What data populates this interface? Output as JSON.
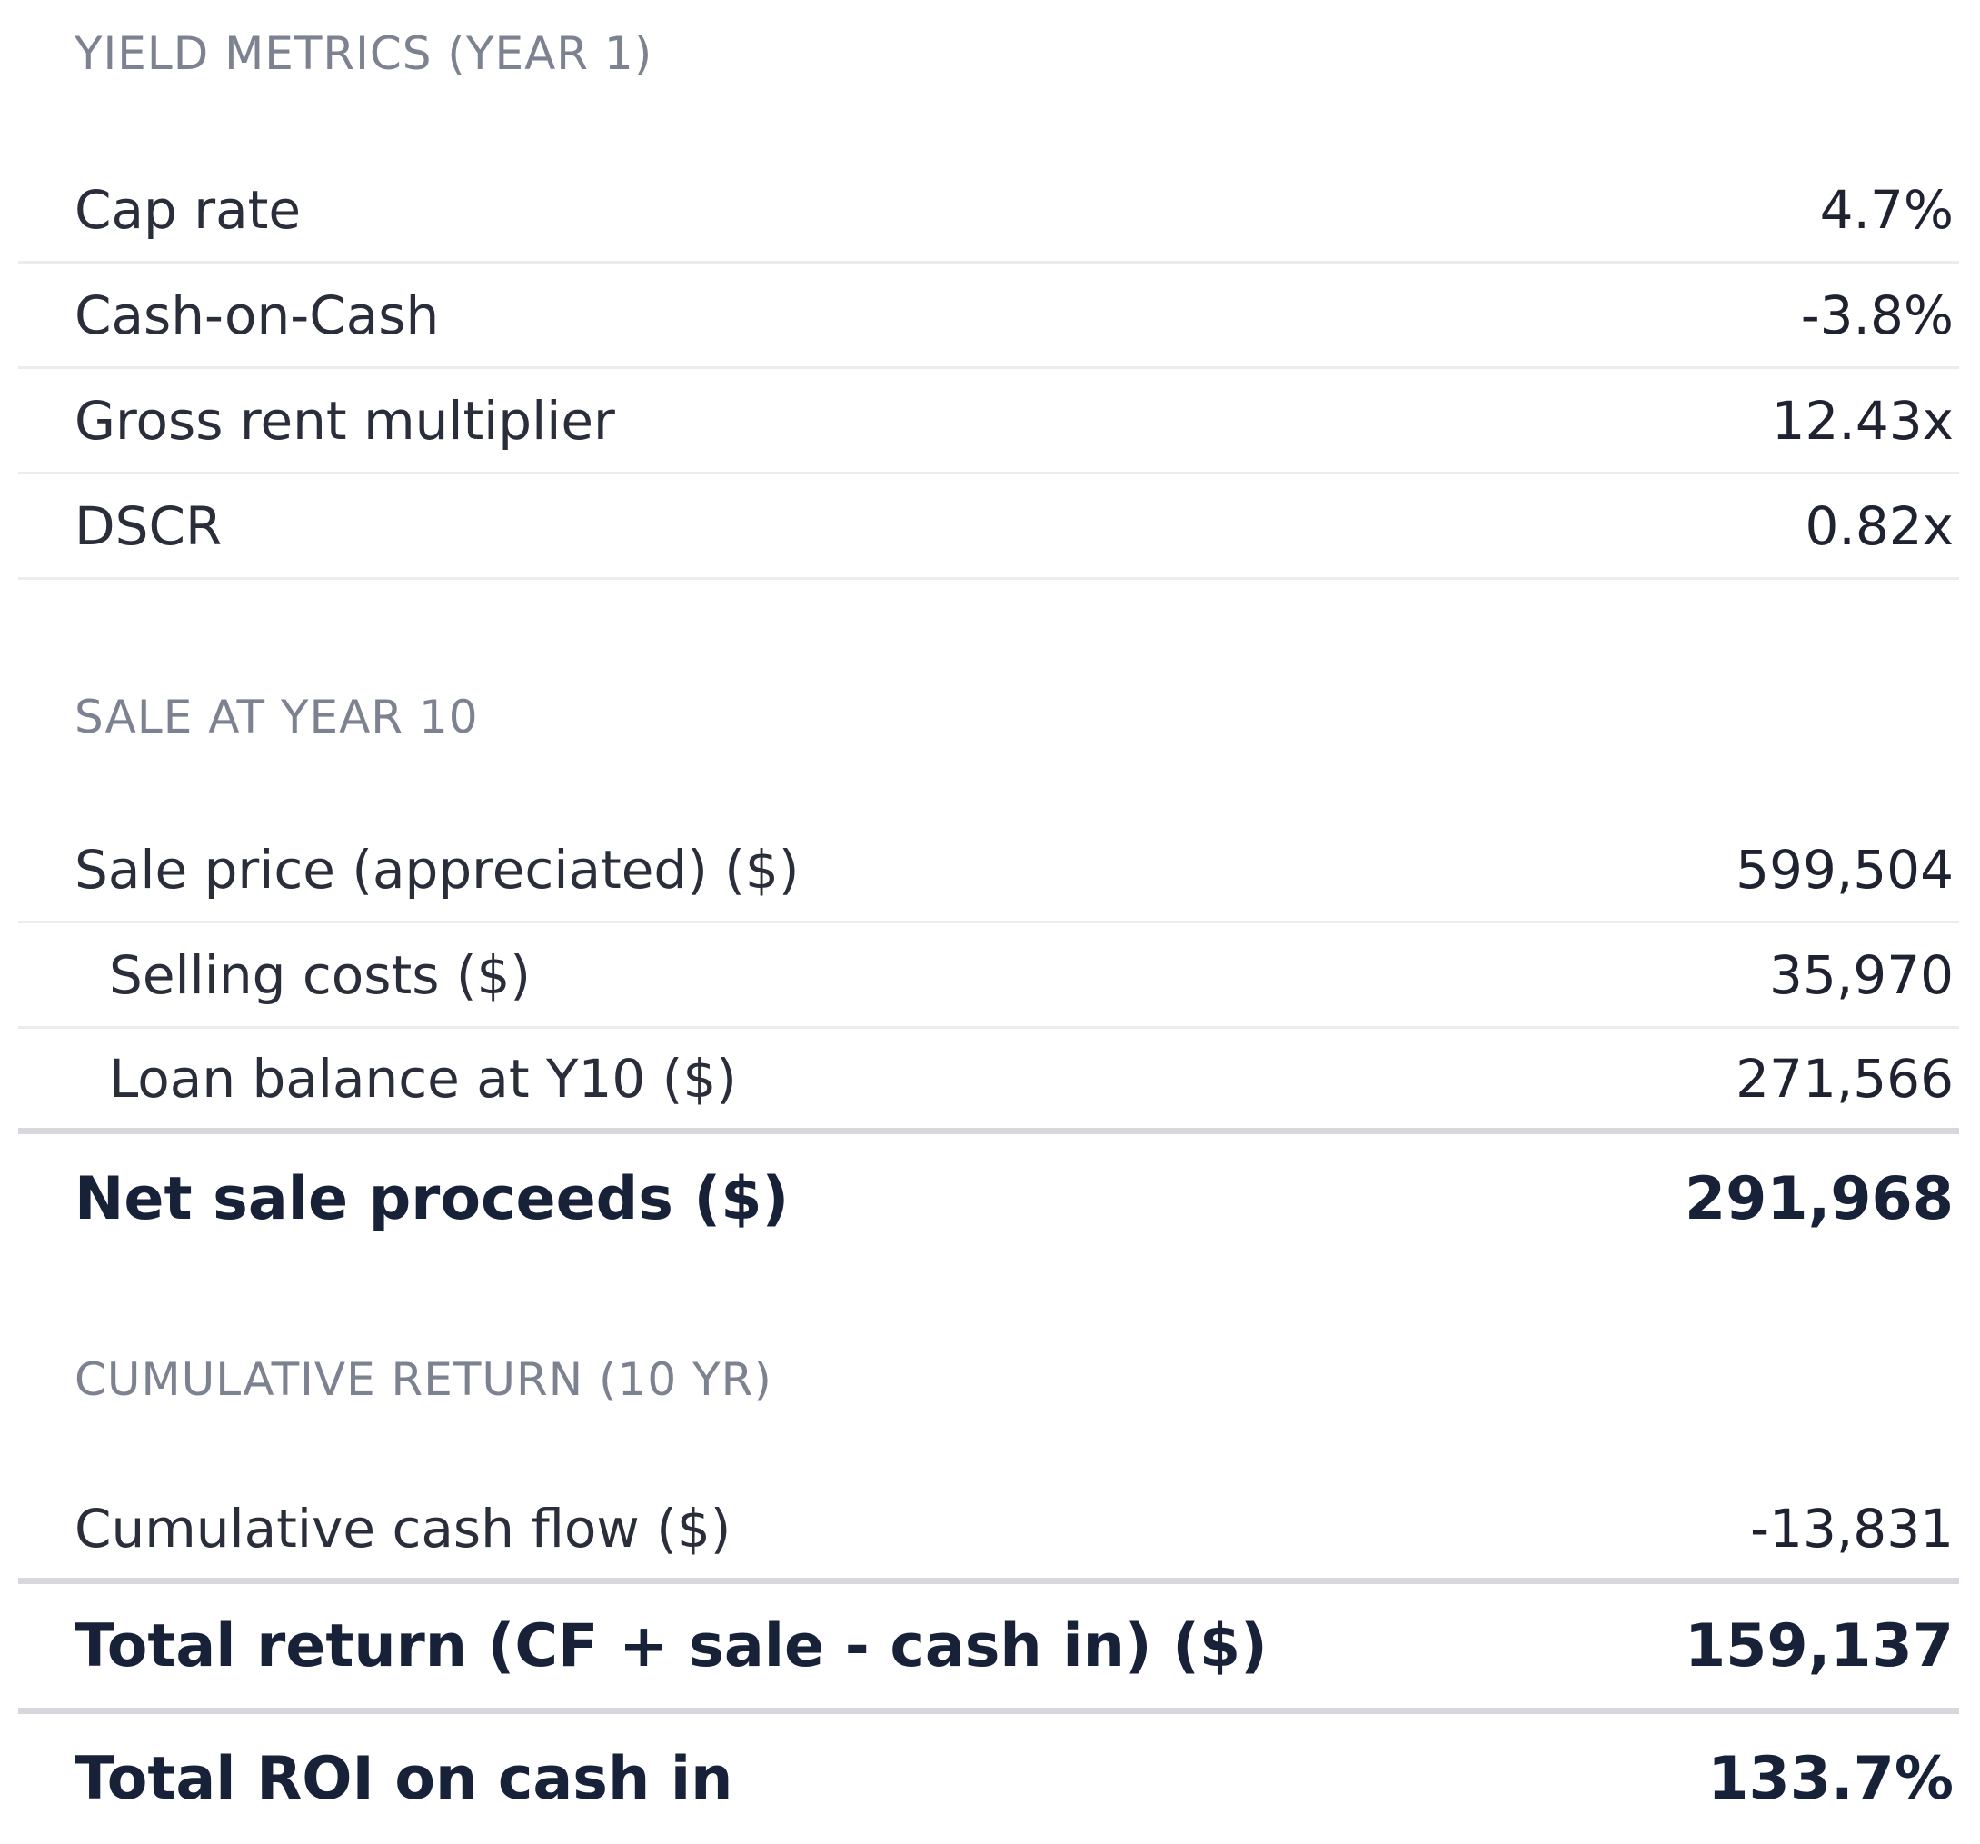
{
  "sections": {
    "yield": {
      "title": "YIELD METRICS (YEAR 1)",
      "rows": [
        {
          "label": "Cap rate",
          "value": "4.7%"
        },
        {
          "label": "Cash-on-Cash",
          "value": "-3.8%"
        },
        {
          "label": "Gross rent multiplier",
          "value": "12.43x"
        },
        {
          "label": "DSCR",
          "value": "0.82x"
        }
      ]
    },
    "sale": {
      "title": "SALE AT YEAR 10",
      "rows": [
        {
          "label": "Sale price (appreciated) ($)",
          "value": "599,504"
        },
        {
          "label": "Selling costs ($)",
          "value": "35,970"
        },
        {
          "label": "Loan balance at Y10 ($)",
          "value": "271,566"
        }
      ],
      "total": {
        "label": "Net sale proceeds ($)",
        "value": "291,968"
      }
    },
    "cumulative": {
      "title": "CUMULATIVE RETURN (10 YR)",
      "rows": [
        {
          "label": "Cumulative cash flow ($)",
          "value": "-13,831"
        }
      ],
      "totals": [
        {
          "label": "Total return (CF + sale - cash in) ($)",
          "value": "159,137"
        },
        {
          "label": "Total ROI on cash in",
          "value": "133.7%"
        }
      ]
    }
  }
}
